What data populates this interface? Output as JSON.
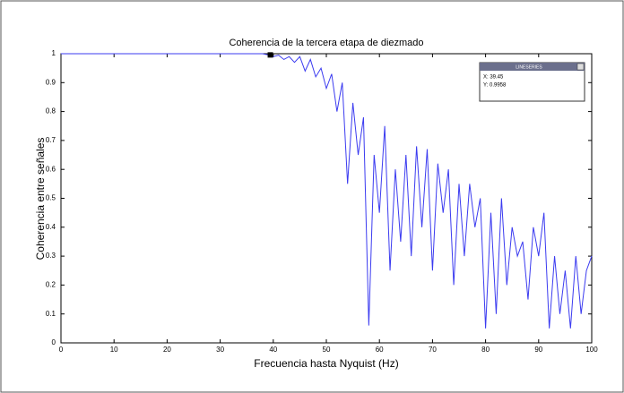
{
  "chart_data": {
    "type": "line",
    "title": "Coherencia de la tercera etapa de diezmado",
    "xlabel": "Frecuencia hasta Nyquist (Hz)",
    "ylabel": "Coherencia entre señales",
    "xlim": [
      0,
      100
    ],
    "ylim": [
      0,
      1
    ],
    "xticks": [
      0,
      10,
      20,
      30,
      40,
      50,
      60,
      70,
      80,
      90,
      100
    ],
    "yticks": [
      0,
      0.1,
      0.2,
      0.3,
      0.4,
      0.5,
      0.6,
      0.7,
      0.8,
      0.9,
      1
    ],
    "series": [
      {
        "color": "#3b3bf0",
        "x": [
          0,
          1,
          2,
          3,
          4,
          5,
          6,
          7,
          8,
          9,
          10,
          11,
          12,
          13,
          14,
          15,
          16,
          17,
          18,
          19,
          20,
          21,
          22,
          23,
          24,
          25,
          26,
          27,
          28,
          29,
          30,
          31,
          32,
          33,
          34,
          35,
          36,
          37,
          38,
          39,
          40,
          41,
          42,
          43,
          44,
          45,
          46,
          47,
          48,
          49,
          50,
          51,
          52,
          53,
          54,
          55,
          56,
          57,
          58,
          59,
          60,
          61,
          62,
          63,
          64,
          65,
          66,
          67,
          68,
          69,
          70,
          71,
          72,
          73,
          74,
          75,
          76,
          77,
          78,
          79,
          80,
          81,
          82,
          83,
          84,
          85,
          86,
          87,
          88,
          89,
          90,
          91,
          92,
          93,
          94,
          95,
          96,
          97,
          98,
          99,
          100
        ],
        "values": [
          1,
          1,
          1,
          1,
          1,
          1,
          1,
          1,
          1,
          1,
          1,
          1,
          1,
          1,
          1,
          1,
          1,
          1,
          1,
          1,
          1,
          1,
          1,
          1,
          1,
          1,
          1,
          1,
          1,
          1,
          1,
          1,
          1,
          1,
          1,
          1,
          1,
          1,
          1,
          0.996,
          0.99,
          0.995,
          0.98,
          0.99,
          0.97,
          0.99,
          0.94,
          0.98,
          0.92,
          0.95,
          0.88,
          0.93,
          0.8,
          0.9,
          0.55,
          0.83,
          0.65,
          0.78,
          0.06,
          0.65,
          0.45,
          0.75,
          0.25,
          0.6,
          0.35,
          0.65,
          0.3,
          0.68,
          0.4,
          0.67,
          0.25,
          0.62,
          0.45,
          0.6,
          0.2,
          0.55,
          0.3,
          0.55,
          0.4,
          0.5,
          0.05,
          0.45,
          0.1,
          0.5,
          0.2,
          0.4,
          0.3,
          0.35,
          0.15,
          0.4,
          0.3,
          0.45,
          0.05,
          0.3,
          0.1,
          0.25,
          0.05,
          0.3,
          0.1,
          0.25,
          0.3
        ]
      }
    ],
    "datatip": {
      "title": "LINESERIES",
      "x_label": "X: 39.45",
      "y_label": "Y: 0.9958",
      "x": 39.45,
      "y": 0.9958
    }
  }
}
